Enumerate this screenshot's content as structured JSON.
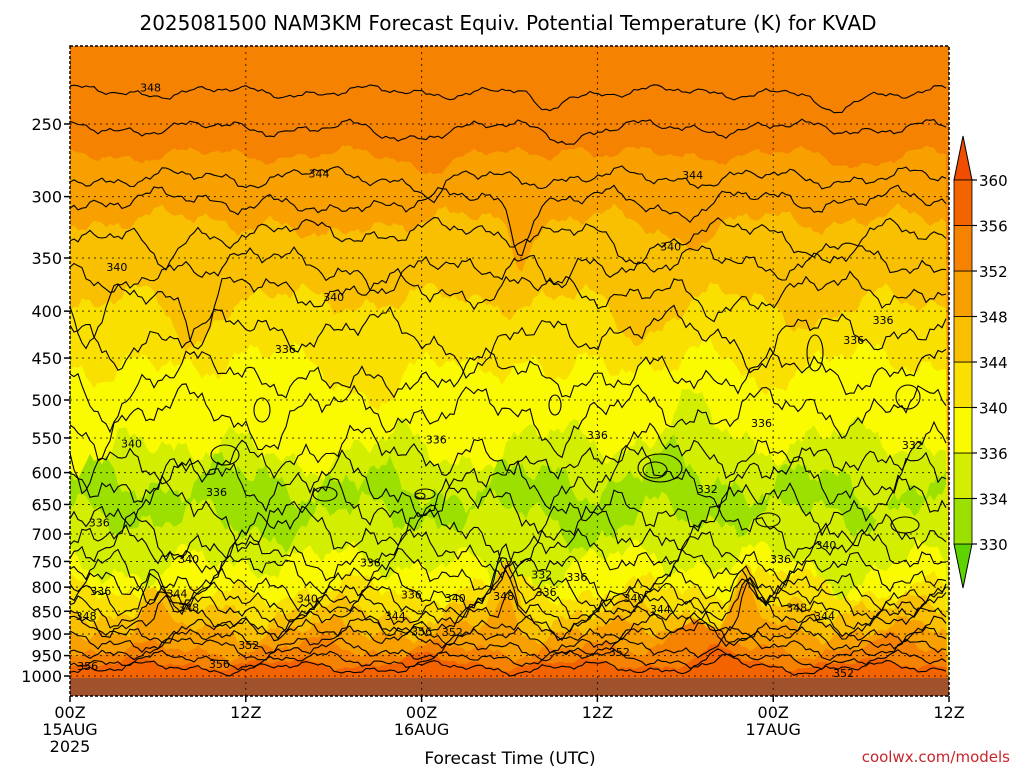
{
  "chart_data": {
    "type": "heatmap",
    "title": "2025081500 NAM3KM Forecast Equiv. Potential Temperature (K) for KVAD",
    "xlabel": "Forecast Time (UTC)",
    "ylabel": "",
    "x_ticks": [
      {
        "hour": 0,
        "lines": [
          "00Z",
          "15AUG",
          "2025"
        ]
      },
      {
        "hour": 12,
        "lines": [
          "12Z"
        ]
      },
      {
        "hour": 24,
        "lines": [
          "00Z",
          "16AUG"
        ]
      },
      {
        "hour": 36,
        "lines": [
          "12Z"
        ]
      },
      {
        "hour": 48,
        "lines": [
          "00Z",
          "17AUG"
        ]
      },
      {
        "hour": 60,
        "lines": [
          "12Z"
        ]
      }
    ],
    "x_range_hours": [
      0,
      60
    ],
    "y_ticks_hpa": [
      250,
      300,
      350,
      400,
      450,
      500,
      550,
      600,
      650,
      700,
      750,
      800,
      850,
      900,
      950,
      1000
    ],
    "y_range_hpa": [
      200,
      1015
    ],
    "y_scale": "log-pressure",
    "grid": "dotted",
    "colorbar": {
      "levels": [
        330,
        334,
        336,
        340,
        344,
        348,
        352,
        356,
        360
      ],
      "colors": [
        "#5dd400",
        "#9be000",
        "#d3ee00",
        "#fafa00",
        "#f9e000",
        "#f8c000",
        "#f7a000",
        "#f58200",
        "#f36400",
        "#f04d00"
      ],
      "units": "K"
    },
    "contour_labels": [
      {
        "hour": 5.5,
        "hpa": 228,
        "value": "348"
      },
      {
        "hour": 17,
        "hpa": 283,
        "value": "344"
      },
      {
        "hour": 42.5,
        "hpa": 284,
        "value": "344"
      },
      {
        "hour": 3.2,
        "hpa": 358,
        "value": "340"
      },
      {
        "hour": 18,
        "hpa": 386,
        "value": "340"
      },
      {
        "hour": 41,
        "hpa": 340,
        "value": "340"
      },
      {
        "hour": 14.7,
        "hpa": 440,
        "value": "336"
      },
      {
        "hour": 55.5,
        "hpa": 409,
        "value": "336"
      },
      {
        "hour": 53.5,
        "hpa": 430,
        "value": "336"
      },
      {
        "hour": 4.2,
        "hpa": 558,
        "value": "340"
      },
      {
        "hour": 25,
        "hpa": 552,
        "value": "336"
      },
      {
        "hour": 36,
        "hpa": 546,
        "value": "336"
      },
      {
        "hour": 47.2,
        "hpa": 530,
        "value": "336"
      },
      {
        "hour": 57.5,
        "hpa": 560,
        "value": "332"
      },
      {
        "hour": 10,
        "hpa": 630,
        "value": "336"
      },
      {
        "hour": 2,
        "hpa": 680,
        "value": "336"
      },
      {
        "hour": 43.5,
        "hpa": 625,
        "value": "332"
      },
      {
        "hour": 8.1,
        "hpa": 745,
        "value": "340"
      },
      {
        "hour": 20.5,
        "hpa": 752,
        "value": "336"
      },
      {
        "hour": 48.5,
        "hpa": 745,
        "value": "336"
      },
      {
        "hour": 51.6,
        "hpa": 720,
        "value": "340"
      },
      {
        "hour": 32.2,
        "hpa": 775,
        "value": "332"
      },
      {
        "hour": 34.6,
        "hpa": 780,
        "value": "336"
      },
      {
        "hour": 2.1,
        "hpa": 808,
        "value": "336"
      },
      {
        "hour": 7.3,
        "hpa": 813,
        "value": "344"
      },
      {
        "hour": 8.1,
        "hpa": 842,
        "value": "348"
      },
      {
        "hour": 16.2,
        "hpa": 823,
        "value": "340"
      },
      {
        "hour": 23.3,
        "hpa": 815,
        "value": "336"
      },
      {
        "hour": 26.3,
        "hpa": 822,
        "value": "340"
      },
      {
        "hour": 29.6,
        "hpa": 818,
        "value": "348"
      },
      {
        "hour": 32.5,
        "hpa": 810,
        "value": "336"
      },
      {
        "hour": 38.5,
        "hpa": 822,
        "value": "340"
      },
      {
        "hour": 40.3,
        "hpa": 845,
        "value": "344"
      },
      {
        "hour": 49.6,
        "hpa": 842,
        "value": "348"
      },
      {
        "hour": 51.5,
        "hpa": 860,
        "value": "344"
      },
      {
        "hour": 1.1,
        "hpa": 860,
        "value": "348"
      },
      {
        "hour": 22.2,
        "hpa": 860,
        "value": "344"
      },
      {
        "hour": 24,
        "hpa": 894,
        "value": "356"
      },
      {
        "hour": 26.1,
        "hpa": 895,
        "value": "352"
      },
      {
        "hour": 12.2,
        "hpa": 925,
        "value": "352"
      },
      {
        "hour": 37.5,
        "hpa": 942,
        "value": "352"
      },
      {
        "hour": 1.2,
        "hpa": 975,
        "value": "356"
      },
      {
        "hour": 10.2,
        "hpa": 970,
        "value": "356"
      },
      {
        "hour": 52.8,
        "hpa": 993,
        "value": "352"
      }
    ]
  },
  "credit": "coolwx.com/models"
}
